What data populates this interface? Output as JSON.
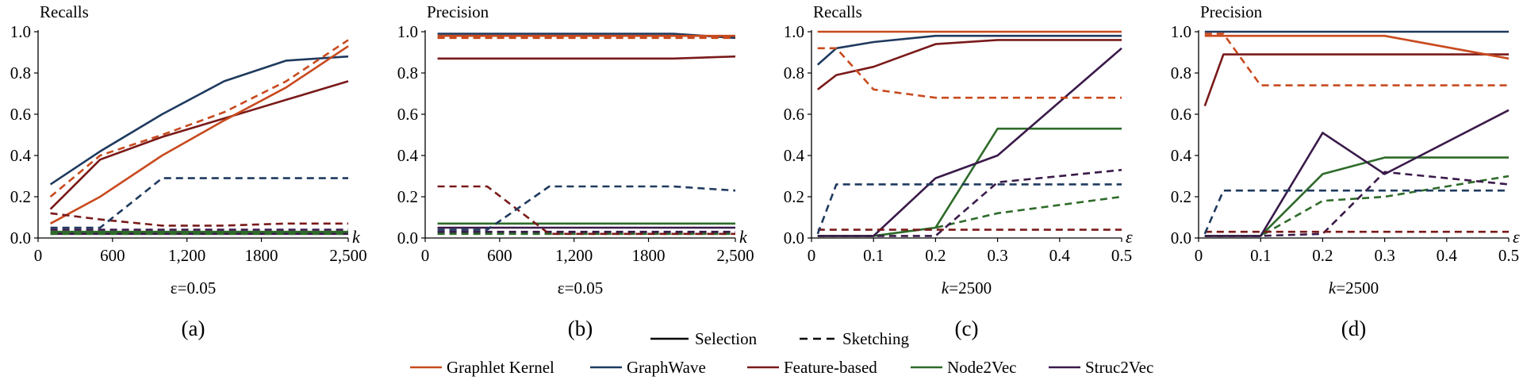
{
  "colors": {
    "Graphlet Kernel": "#c84a1e",
    "GraphWave": "#1f3a5f",
    "Feature-based": "#7a1a1a",
    "Node2Vec": "#2e6b2a",
    "Struc2Vec": "#3a1a4a"
  },
  "legend": {
    "methods": [
      "Selection",
      "Sketching"
    ],
    "series": [
      "Graphlet Kernel",
      "GraphWave",
      "Feature-based",
      "Node2Vec",
      "Struc2Vec"
    ]
  },
  "chart_data": [
    {
      "type": "line",
      "panel": "(a)",
      "title": "Recalls",
      "x_var": "k",
      "condition": "ε=0.05",
      "xlim": [
        0,
        2500
      ],
      "ylim": [
        0,
        1.0
      ],
      "xticks": [
        0,
        600,
        1200,
        1800,
        2500
      ],
      "xtick_labels": [
        "0",
        "600",
        "1,200",
        "1800",
        "2,500"
      ],
      "yticks": [
        "0.0",
        "0.2",
        "0.4",
        "0.6",
        "0.8",
        "1.0"
      ],
      "x": [
        100,
        500,
        1000,
        1500,
        2000,
        2500
      ],
      "series": [
        {
          "name": "Graphlet Kernel",
          "method": "Selection",
          "values": [
            0.07,
            0.2,
            0.4,
            0.57,
            0.73,
            0.93
          ]
        },
        {
          "name": "Graphlet Kernel",
          "method": "Sketching",
          "values": [
            0.2,
            0.4,
            0.5,
            0.61,
            0.76,
            0.96
          ]
        },
        {
          "name": "GraphWave",
          "method": "Selection",
          "values": [
            0.26,
            0.42,
            0.6,
            0.76,
            0.86,
            0.88
          ]
        },
        {
          "name": "GraphWave",
          "method": "Sketching",
          "values": [
            0.05,
            0.05,
            0.29,
            0.29,
            0.29,
            0.29
          ]
        },
        {
          "name": "Feature-based",
          "method": "Selection",
          "values": [
            0.14,
            0.38,
            0.49,
            0.58,
            0.67,
            0.76
          ]
        },
        {
          "name": "Feature-based",
          "method": "Sketching",
          "values": [
            0.12,
            0.09,
            0.06,
            0.06,
            0.07,
            0.07
          ]
        },
        {
          "name": "Node2Vec",
          "method": "Selection",
          "values": [
            0.03,
            0.03,
            0.03,
            0.03,
            0.03,
            0.03
          ]
        },
        {
          "name": "Node2Vec",
          "method": "Sketching",
          "values": [
            0.02,
            0.02,
            0.02,
            0.02,
            0.02,
            0.02
          ]
        },
        {
          "name": "Struc2Vec",
          "method": "Selection",
          "values": [
            0.02,
            0.02,
            0.02,
            0.02,
            0.02,
            0.02
          ]
        },
        {
          "name": "Struc2Vec",
          "method": "Sketching",
          "values": [
            0.04,
            0.04,
            0.04,
            0.04,
            0.04,
            0.04
          ]
        }
      ]
    },
    {
      "type": "line",
      "panel": "(b)",
      "title": "Precision",
      "x_var": "k",
      "condition": "ε=0.05",
      "xlim": [
        0,
        2500
      ],
      "ylim": [
        0,
        1.0
      ],
      "xticks": [
        0,
        600,
        1200,
        1800,
        2500
      ],
      "xtick_labels": [
        "0",
        "600",
        "1,200",
        "1800",
        "2,500"
      ],
      "yticks": [
        "0.0",
        "0.2",
        "0.4",
        "0.6",
        "0.8",
        "1.0"
      ],
      "x": [
        100,
        500,
        1000,
        1500,
        2000,
        2500
      ],
      "series": [
        {
          "name": "Graphlet Kernel",
          "method": "Selection",
          "values": [
            0.98,
            0.98,
            0.98,
            0.98,
            0.98,
            0.98
          ]
        },
        {
          "name": "Graphlet Kernel",
          "method": "Sketching",
          "values": [
            0.97,
            0.97,
            0.97,
            0.97,
            0.97,
            0.97
          ]
        },
        {
          "name": "GraphWave",
          "method": "Selection",
          "values": [
            0.99,
            0.99,
            0.99,
            0.99,
            0.99,
            0.97
          ]
        },
        {
          "name": "GraphWave",
          "method": "Sketching",
          "values": [
            0.04,
            0.04,
            0.25,
            0.25,
            0.25,
            0.23
          ]
        },
        {
          "name": "Feature-based",
          "method": "Selection",
          "values": [
            0.87,
            0.87,
            0.87,
            0.87,
            0.87,
            0.88
          ]
        },
        {
          "name": "Feature-based",
          "method": "Sketching",
          "values": [
            0.25,
            0.25,
            0.02,
            0.02,
            0.02,
            0.02
          ]
        },
        {
          "name": "Node2Vec",
          "method": "Selection",
          "values": [
            0.07,
            0.07,
            0.07,
            0.07,
            0.07,
            0.07
          ]
        },
        {
          "name": "Node2Vec",
          "method": "Sketching",
          "values": [
            0.02,
            0.02,
            0.02,
            0.02,
            0.02,
            0.02
          ]
        },
        {
          "name": "Struc2Vec",
          "method": "Selection",
          "values": [
            0.05,
            0.05,
            0.05,
            0.05,
            0.05,
            0.05
          ]
        },
        {
          "name": "Struc2Vec",
          "method": "Sketching",
          "values": [
            0.03,
            0.03,
            0.03,
            0.03,
            0.03,
            0.03
          ]
        }
      ]
    },
    {
      "type": "line",
      "panel": "(c)",
      "title": "Recalls",
      "x_var": "ε",
      "condition": "k=2500",
      "xlim": [
        0,
        0.5
      ],
      "ylim": [
        0,
        1.0
      ],
      "xticks": [
        0,
        0.1,
        0.2,
        0.3,
        0.4,
        0.5
      ],
      "xtick_labels": [
        "0",
        "0.1",
        "0.2",
        "0.3",
        "0.4",
        "0.5"
      ],
      "yticks": [
        "0.0",
        "0.2",
        "0.4",
        "0.6",
        "0.8",
        "1.0"
      ],
      "x": [
        0.01,
        0.04,
        0.1,
        0.2,
        0.3,
        0.5
      ],
      "series": [
        {
          "name": "Graphlet Kernel",
          "method": "Selection",
          "values": [
            1.0,
            1.0,
            1.0,
            1.0,
            1.0,
            1.0
          ]
        },
        {
          "name": "Graphlet Kernel",
          "method": "Sketching",
          "values": [
            0.92,
            0.92,
            0.72,
            0.68,
            0.68,
            0.68
          ]
        },
        {
          "name": "GraphWave",
          "method": "Selection",
          "values": [
            0.84,
            0.92,
            0.95,
            0.98,
            0.98,
            0.98
          ]
        },
        {
          "name": "GraphWave",
          "method": "Sketching",
          "values": [
            0.02,
            0.26,
            0.26,
            0.26,
            0.26,
            0.26
          ]
        },
        {
          "name": "Feature-based",
          "method": "Selection",
          "values": [
            0.72,
            0.79,
            0.83,
            0.94,
            0.96,
            0.96
          ]
        },
        {
          "name": "Feature-based",
          "method": "Sketching",
          "values": [
            0.04,
            0.04,
            0.04,
            0.04,
            0.04,
            0.04
          ]
        },
        {
          "name": "Node2Vec",
          "method": "Selection",
          "values": [
            0.01,
            0.01,
            0.01,
            0.05,
            0.53,
            0.53
          ]
        },
        {
          "name": "Node2Vec",
          "method": "Sketching",
          "values": [
            0.01,
            0.01,
            0.01,
            0.05,
            0.12,
            0.2
          ]
        },
        {
          "name": "Struc2Vec",
          "method": "Selection",
          "values": [
            0.01,
            0.01,
            0.01,
            0.29,
            0.4,
            0.92
          ]
        },
        {
          "name": "Struc2Vec",
          "method": "Sketching",
          "values": [
            0.01,
            0.01,
            0.01,
            0.01,
            0.27,
            0.33
          ]
        }
      ]
    },
    {
      "type": "line",
      "panel": "(d)",
      "title": "Precision",
      "x_var": "ε",
      "condition": "k=2500",
      "xlim": [
        0,
        0.5
      ],
      "ylim": [
        0,
        1.0
      ],
      "xticks": [
        0,
        0.1,
        0.2,
        0.3,
        0.4,
        0.5
      ],
      "xtick_labels": [
        "0",
        "0.1",
        "0.2",
        "0.3",
        "0.4",
        "0.5"
      ],
      "yticks": [
        "0.0",
        "0.2",
        "0.4",
        "0.6",
        "0.8",
        "1.0"
      ],
      "x": [
        0.01,
        0.04,
        0.1,
        0.2,
        0.3,
        0.5
      ],
      "series": [
        {
          "name": "Graphlet Kernel",
          "method": "Selection",
          "values": [
            0.98,
            0.98,
            0.98,
            0.98,
            0.98,
            0.87
          ]
        },
        {
          "name": "Graphlet Kernel",
          "method": "Sketching",
          "values": [
            0.99,
            0.99,
            0.74,
            0.74,
            0.74,
            0.74
          ]
        },
        {
          "name": "GraphWave",
          "method": "Selection",
          "values": [
            1.0,
            1.0,
            1.0,
            1.0,
            1.0,
            1.0
          ]
        },
        {
          "name": "GraphWave",
          "method": "Sketching",
          "values": [
            0.02,
            0.23,
            0.23,
            0.23,
            0.23,
            0.23
          ]
        },
        {
          "name": "Feature-based",
          "method": "Selection",
          "values": [
            0.64,
            0.89,
            0.89,
            0.89,
            0.89,
            0.89
          ]
        },
        {
          "name": "Feature-based",
          "method": "Sketching",
          "values": [
            0.03,
            0.03,
            0.03,
            0.03,
            0.03,
            0.03
          ]
        },
        {
          "name": "Node2Vec",
          "method": "Selection",
          "values": [
            0.01,
            0.01,
            0.01,
            0.31,
            0.39,
            0.39
          ]
        },
        {
          "name": "Node2Vec",
          "method": "Sketching",
          "values": [
            0.01,
            0.01,
            0.01,
            0.18,
            0.2,
            0.3
          ]
        },
        {
          "name": "Struc2Vec",
          "method": "Selection",
          "values": [
            0.01,
            0.01,
            0.01,
            0.51,
            0.31,
            0.62
          ]
        },
        {
          "name": "Struc2Vec",
          "method": "Sketching",
          "values": [
            0.01,
            0.01,
            0.01,
            0.02,
            0.32,
            0.26
          ]
        }
      ]
    }
  ]
}
